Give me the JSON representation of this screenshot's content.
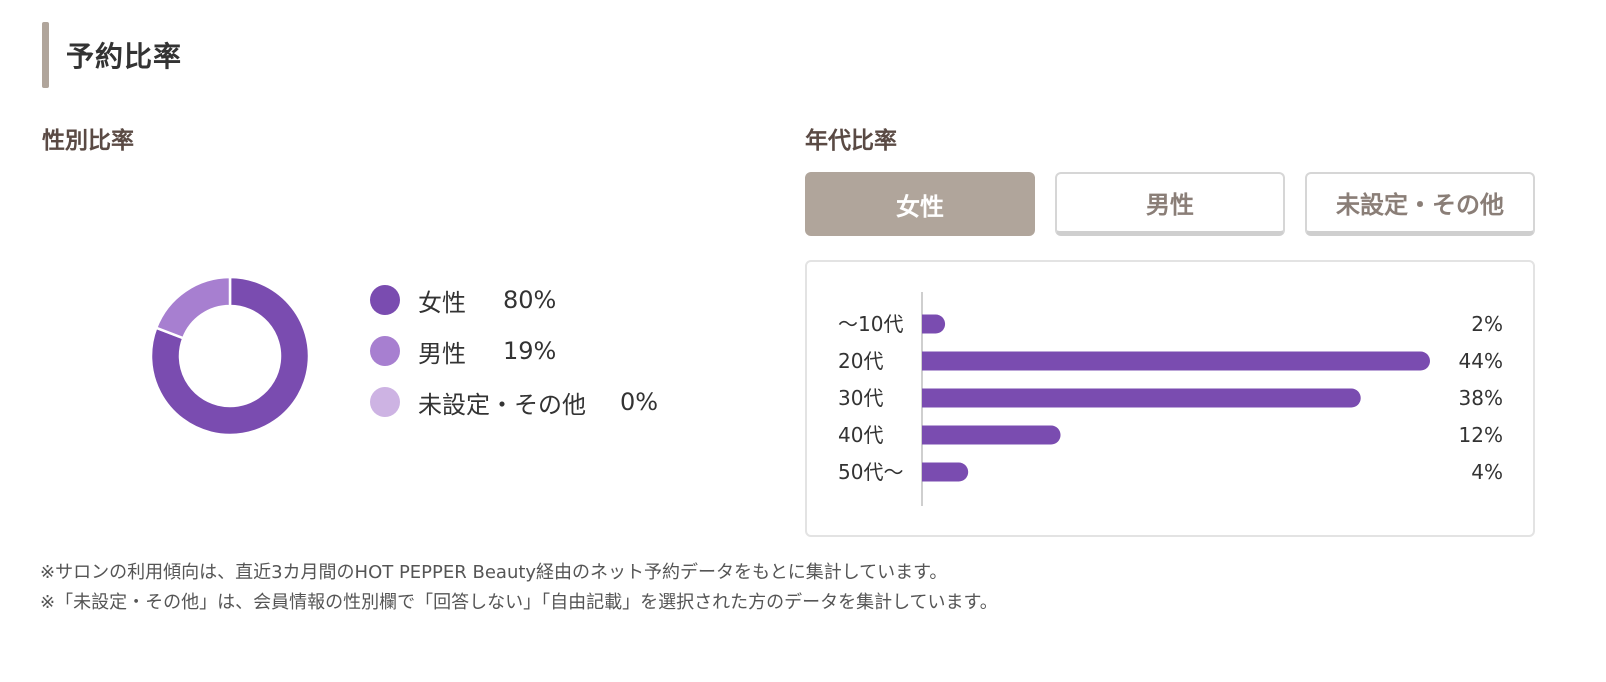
{
  "section": {
    "title": "予約比率"
  },
  "gender": {
    "title": "性別比率"
  },
  "age": {
    "title": "年代比率",
    "tabs": [
      {
        "label": "女性",
        "active": true
      },
      {
        "label": "男性",
        "active": false
      },
      {
        "label": "未設定・その他",
        "active": false
      }
    ]
  },
  "notes": [
    "※サロンの利用傾向は、直近3カ月間のHOT PEPPER Beauty経由のネット予約データをもとに集計しています。",
    "※「未設定・その他」は、会員情報の性別欄で「回答しない」「自由記載」を選択された方のデータを集計しています。"
  ],
  "colors": {
    "accent": "#b0a59b",
    "female": "#7a4cb0",
    "male": "#a77fd0",
    "other": "#cdb3e3",
    "bar": "#7a4cb0"
  },
  "chart_data": [
    {
      "type": "pie",
      "title": "性別比率",
      "categories": [
        "女性",
        "男性",
        "未設定・その他"
      ],
      "values": [
        80,
        19,
        0
      ],
      "value_labels": [
        "80%",
        "19%",
        "0%"
      ],
      "colors": [
        "#7a4cb0",
        "#a77fd0",
        "#cdb3e3"
      ],
      "legend": "right"
    },
    {
      "type": "bar",
      "orientation": "horizontal",
      "title": "年代比率",
      "selected_tab": "女性",
      "categories": [
        "〜10代",
        "20代",
        "30代",
        "40代",
        "50代〜"
      ],
      "values": [
        2,
        44,
        38,
        12,
        4
      ],
      "value_labels": [
        "2%",
        "44%",
        "38%",
        "12%",
        "4%"
      ],
      "color": "#7a4cb0"
    }
  ]
}
